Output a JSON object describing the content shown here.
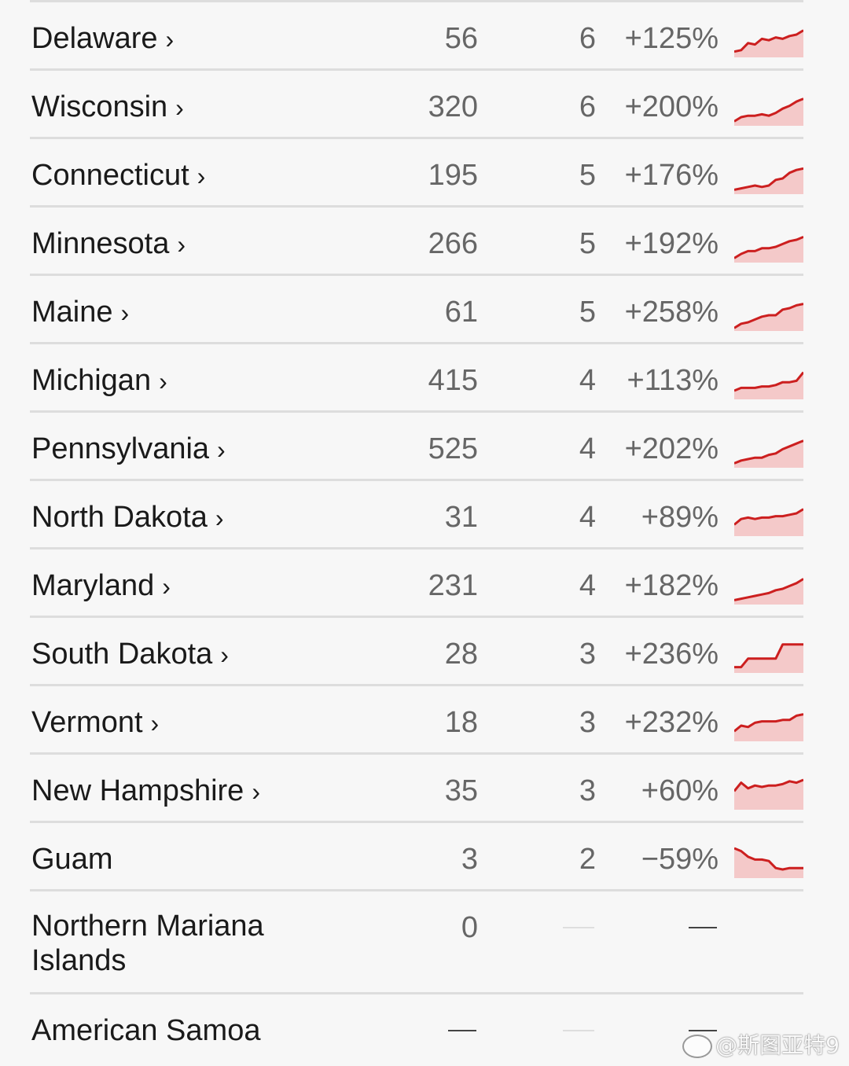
{
  "colors": {
    "spark_line": "#cc1f1f",
    "spark_fill": "#f4c9c9",
    "rule": "#dddddd"
  },
  "rows": [
    {
      "name": "Delaware",
      "chevron": "›",
      "total": "56",
      "avg": "6",
      "pct": "+125%",
      "trend": [
        0.15,
        0.2,
        0.45,
        0.4,
        0.6,
        0.55,
        0.65,
        0.6,
        0.7,
        0.75,
        0.9
      ]
    },
    {
      "name": "Wisconsin",
      "chevron": "›",
      "total": "320",
      "avg": "6",
      "pct": "+200%",
      "trend": [
        0.1,
        0.25,
        0.3,
        0.3,
        0.35,
        0.3,
        0.4,
        0.55,
        0.65,
        0.8,
        0.9
      ]
    },
    {
      "name": "Connecticut",
      "chevron": "›",
      "total": "195",
      "avg": "5",
      "pct": "+176%",
      "trend": [
        0.1,
        0.15,
        0.2,
        0.25,
        0.2,
        0.25,
        0.45,
        0.5,
        0.7,
        0.8,
        0.85
      ]
    },
    {
      "name": "Minnesota",
      "chevron": "›",
      "total": "266",
      "avg": "5",
      "pct": "+192%",
      "trend": [
        0.1,
        0.25,
        0.35,
        0.35,
        0.45,
        0.45,
        0.5,
        0.6,
        0.7,
        0.75,
        0.85
      ]
    },
    {
      "name": "Maine",
      "chevron": "›",
      "total": "61",
      "avg": "5",
      "pct": "+258%",
      "trend": [
        0.05,
        0.2,
        0.25,
        0.35,
        0.45,
        0.5,
        0.5,
        0.7,
        0.75,
        0.85,
        0.9
      ]
    },
    {
      "name": "Michigan",
      "chevron": "›",
      "total": "415",
      "avg": "4",
      "pct": "+113%",
      "trend": [
        0.25,
        0.35,
        0.35,
        0.35,
        0.4,
        0.4,
        0.45,
        0.55,
        0.55,
        0.6,
        0.9
      ]
    },
    {
      "name": "Pennsylvania",
      "chevron": "›",
      "total": "525",
      "avg": "4",
      "pct": "+202%",
      "trend": [
        0.1,
        0.2,
        0.25,
        0.3,
        0.3,
        0.4,
        0.45,
        0.6,
        0.7,
        0.8,
        0.9
      ]
    },
    {
      "name": "North Dakota",
      "chevron": "›",
      "total": "31",
      "avg": "4",
      "pct": "+89%",
      "trend": [
        0.35,
        0.55,
        0.6,
        0.55,
        0.6,
        0.6,
        0.65,
        0.65,
        0.7,
        0.75,
        0.9
      ]
    },
    {
      "name": "Maryland",
      "chevron": "›",
      "total": "231",
      "avg": "4",
      "pct": "+182%",
      "trend": [
        0.1,
        0.15,
        0.2,
        0.25,
        0.3,
        0.35,
        0.45,
        0.5,
        0.6,
        0.7,
        0.85
      ]
    },
    {
      "name": "South Dakota",
      "chevron": "›",
      "total": "28",
      "avg": "3",
      "pct": "+236%",
      "trend": [
        0.15,
        0.15,
        0.45,
        0.45,
        0.45,
        0.45,
        0.45,
        0.95,
        0.95,
        0.95,
        0.95
      ]
    },
    {
      "name": "Vermont",
      "chevron": "›",
      "total": "18",
      "avg": "3",
      "pct": "+232%",
      "trend": [
        0.3,
        0.5,
        0.45,
        0.6,
        0.65,
        0.65,
        0.65,
        0.7,
        0.7,
        0.85,
        0.9
      ]
    },
    {
      "name": "New Hampshire",
      "chevron": "›",
      "total": "35",
      "avg": "3",
      "pct": "+60%",
      "trend": [
        0.6,
        0.9,
        0.7,
        0.8,
        0.75,
        0.8,
        0.8,
        0.85,
        0.95,
        0.9,
        1.0
      ]
    },
    {
      "name": "Guam",
      "chevron": "",
      "total": "3",
      "avg": "2",
      "pct": "−59%",
      "trend": [
        1.0,
        0.9,
        0.7,
        0.6,
        0.6,
        0.55,
        0.3,
        0.25,
        0.3,
        0.3,
        0.3
      ]
    },
    {
      "name": "Northern Mariana Islands",
      "chevron": "",
      "total": "0",
      "avg": "",
      "pct": "",
      "trend": null
    },
    {
      "name": "American Samoa",
      "chevron": "",
      "total": "",
      "avg": "",
      "pct": "",
      "trend": null
    }
  ],
  "watermark": "@斯图亚特9"
}
